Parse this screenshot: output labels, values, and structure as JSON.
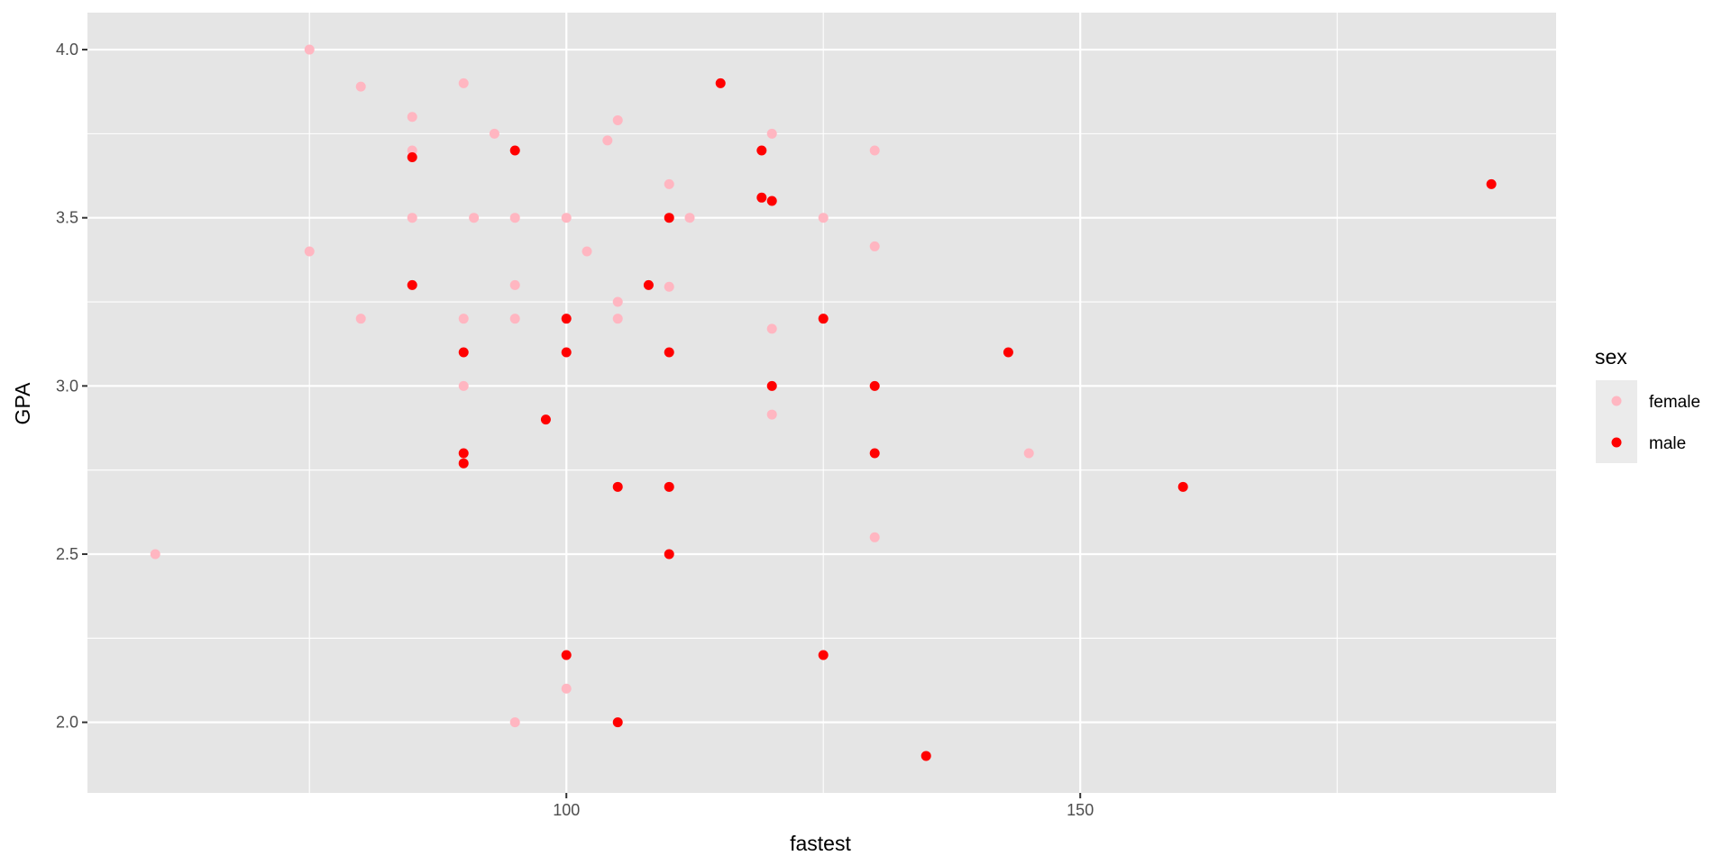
{
  "chart_data": {
    "type": "scatter",
    "title": "",
    "xlabel": "fastest",
    "ylabel": "GPA",
    "xlim": [
      53.4,
      196.3
    ],
    "ylim": [
      1.79,
      4.11
    ],
    "x_ticks": [
      100,
      150
    ],
    "x_tick_labels": [
      "100",
      "150"
    ],
    "x_minor_ticks": [
      75,
      125,
      175
    ],
    "y_ticks": [
      2.0,
      2.5,
      3.0,
      3.5,
      4.0
    ],
    "y_tick_labels": [
      "2.0",
      "2.5",
      "3.0",
      "3.5",
      "4.0"
    ],
    "y_minor_ticks": [
      2.25,
      2.75,
      3.25,
      3.75
    ],
    "grid": true,
    "panel_background": "#e5e5e5",
    "grid_color": "#ffffff",
    "legend": {
      "title": "sex",
      "position": "right",
      "entries": [
        {
          "label": "female",
          "color": "#ffb6c1"
        },
        {
          "label": "male",
          "color": "#ff0000"
        }
      ]
    },
    "series": [
      {
        "name": "female",
        "color": "#ffb6c1",
        "points": [
          [
            60,
            2.5
          ],
          [
            75,
            4.0
          ],
          [
            75,
            3.4
          ],
          [
            80,
            3.89
          ],
          [
            80,
            3.2
          ],
          [
            85,
            3.8
          ],
          [
            85,
            3.7
          ],
          [
            85,
            3.5
          ],
          [
            90,
            3.9
          ],
          [
            90,
            3.2
          ],
          [
            90,
            3.0
          ],
          [
            91,
            3.5
          ],
          [
            93,
            3.75
          ],
          [
            95,
            3.5
          ],
          [
            95,
            3.3
          ],
          [
            95,
            3.2
          ],
          [
            95,
            2.0
          ],
          [
            100,
            3.5
          ],
          [
            100,
            2.1
          ],
          [
            102,
            3.4
          ],
          [
            104,
            3.73
          ],
          [
            105,
            3.79
          ],
          [
            105,
            3.25
          ],
          [
            105,
            3.2
          ],
          [
            110,
            3.6
          ],
          [
            110,
            3.295
          ],
          [
            112,
            3.5
          ],
          [
            120,
            3.75
          ],
          [
            120,
            3.17
          ],
          [
            120,
            2.915
          ],
          [
            125,
            3.5
          ],
          [
            130,
            3.7
          ],
          [
            130,
            3.415
          ],
          [
            130,
            2.55
          ],
          [
            145,
            2.8
          ]
        ]
      },
      {
        "name": "male",
        "color": "#ff0000",
        "points": [
          [
            85,
            3.68
          ],
          [
            85,
            3.3
          ],
          [
            90,
            3.1
          ],
          [
            90,
            2.8
          ],
          [
            90,
            2.77
          ],
          [
            95,
            3.7
          ],
          [
            98,
            2.9
          ],
          [
            100,
            3.2
          ],
          [
            100,
            3.1
          ],
          [
            100,
            2.2
          ],
          [
            105,
            2.7
          ],
          [
            105,
            2.0
          ],
          [
            108,
            3.3
          ],
          [
            110,
            3.5
          ],
          [
            110,
            3.1
          ],
          [
            110,
            2.7
          ],
          [
            110,
            2.5
          ],
          [
            115,
            3.9
          ],
          [
            119,
            3.7
          ],
          [
            119,
            3.56
          ],
          [
            120,
            3.55
          ],
          [
            120,
            3.0
          ],
          [
            125,
            3.2
          ],
          [
            125,
            2.2
          ],
          [
            130,
            3.0
          ],
          [
            130,
            2.8
          ],
          [
            135,
            1.9
          ],
          [
            143,
            3.1
          ],
          [
            160,
            2.7
          ],
          [
            190,
            3.6
          ]
        ]
      }
    ]
  }
}
